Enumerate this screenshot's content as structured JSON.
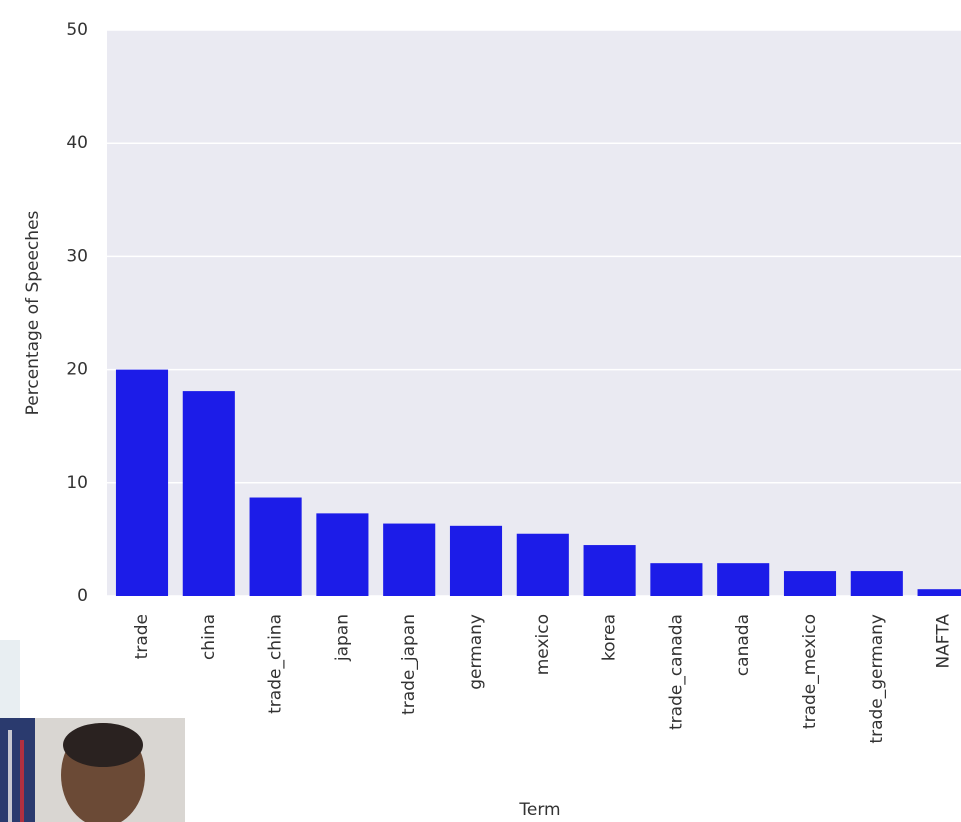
{
  "chart_data": {
    "type": "bar",
    "xlabel": "Term",
    "ylabel": "Percentage of Speeches",
    "categories": [
      "trade",
      "china",
      "trade_china",
      "japan",
      "trade_japan",
      "germany",
      "mexico",
      "korea",
      "trade_canada",
      "canada",
      "trade_mexico",
      "trade_germany",
      "NAFTA"
    ],
    "values": [
      20,
      18.1,
      8.7,
      7.3,
      6.4,
      6.2,
      5.5,
      4.5,
      2.9,
      2.9,
      2.2,
      2.2,
      0.6
    ],
    "color": "#1c1ce8",
    "ylim": [
      0,
      50
    ],
    "yticks": [
      0,
      10,
      20,
      30,
      40,
      50
    ],
    "grid": true
  }
}
